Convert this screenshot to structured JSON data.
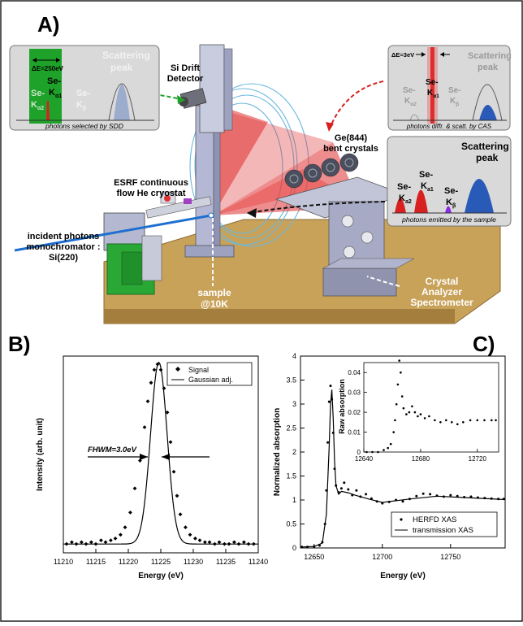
{
  "panels": {
    "a_letter": "A)",
    "b_letter": "B)",
    "c_letter": "C)"
  },
  "setup": {
    "inset_sdd": {
      "delta": "ΔE=250eV",
      "peak1_top": "Se-",
      "peak1_sub": "K",
      "peak1_sub2": "α2",
      "peak2_top": "Se-",
      "peak2_sub": "K",
      "peak2_sub2": "α1",
      "peak3_top": "Se-",
      "peak3_sub": "K",
      "peak3_sub2": "β",
      "scatter_1": "Scattering",
      "scatter_2": "peak",
      "caption": "photons selected by SDD"
    },
    "inset_cas": {
      "delta": "ΔE=3eV",
      "peak1_top": "Se-",
      "peak1_sub": "K",
      "peak1_sub2": "α2",
      "peak2_top": "Se-",
      "peak2_sub": "K",
      "peak2_sub2": "α1",
      "peak3_top": "Se-",
      "peak3_sub": "K",
      "peak3_sub2": "β",
      "scatter_1": "Scattering",
      "scatter_2": "peak",
      "caption": "photons diffr. & scatt. by CAS"
    },
    "inset_emit": {
      "peak1_top": "Se-",
      "peak1_sub": "K",
      "peak1_sub2": "a2",
      "peak2_top": "Se-",
      "peak2_sub": "K",
      "peak2_sub2": "a1",
      "peak3_top": "Se-",
      "peak3_sub": "K",
      "peak3_sub2": "β",
      "scatter_1": "Scattering",
      "scatter_2": "peak",
      "caption": "photons emitted by the sample"
    },
    "labels": {
      "si_drift_1": "Si Drift",
      "si_drift_2": "Detector",
      "ge_1": "Ge(844)",
      "ge_2": "bent crystals",
      "cryo_1": "ESRF continuous",
      "cryo_2": "flow He cryostat",
      "incident_1": "incident photons",
      "incident_2": "monochromator :",
      "incident_3": "Si(220)",
      "sample_1": "sample",
      "sample_2": "@10K",
      "cas_1": "Crystal",
      "cas_2": "Analyzer",
      "cas_3": "Spectrometer"
    },
    "colors": {
      "sdd_green": "#1fa22a",
      "kalpha_red": "#d92020",
      "kbeta_purple": "#8a2be2",
      "scatter_blue": "#2a5ab8",
      "beam_blue": "#1f6fd0",
      "table_tan": "#c9a25a"
    }
  },
  "chart_data": [
    {
      "type": "scatter",
      "panel": "B",
      "xlabel": "Energy (eV)",
      "ylabel": "Intensity (arb. unit)",
      "xlim": [
        11210,
        11240
      ],
      "x_ticks": [
        "11210",
        "11215",
        "11220",
        "11225",
        "11230",
        "11235",
        "11240"
      ],
      "legend": [
        "Signal",
        "Gaussian adj."
      ],
      "legend_position": "top-right",
      "annotation": "FHWM=3.0eV",
      "series": [
        {
          "name": "Signal",
          "x": [
            11210.5,
            11211.3,
            11212.0,
            11212.8,
            11213.5,
            11214.3,
            11215.0,
            11215.8,
            11216.5,
            11217.3,
            11218.0,
            11218.8,
            11219.5,
            11220.3,
            11221.0,
            11221.8,
            11222.5,
            11223.0,
            11223.5,
            11224.0,
            11224.5,
            11225.0,
            11225.5,
            11226.0,
            11226.5,
            11227.0,
            11227.5,
            11228.0,
            11228.8,
            11229.5,
            11230.3,
            11231.0,
            11231.8,
            11232.5,
            11233.3,
            11234.0,
            11234.8,
            11235.5,
            11236.3,
            11237.0,
            11237.8,
            11238.5,
            11239.3
          ],
          "y": [
            0.03,
            0.04,
            0.03,
            0.04,
            0.03,
            0.04,
            0.03,
            0.05,
            0.04,
            0.05,
            0.06,
            0.08,
            0.12,
            0.2,
            0.33,
            0.48,
            0.66,
            0.8,
            0.9,
            0.97,
            1.0,
            0.97,
            0.87,
            0.74,
            0.58,
            0.42,
            0.29,
            0.19,
            0.12,
            0.08,
            0.06,
            0.05,
            0.04,
            0.04,
            0.03,
            0.04,
            0.03,
            0.03,
            0.04,
            0.03,
            0.04,
            0.03,
            0.03
          ]
        },
        {
          "name": "Gaussian adj.",
          "center": 11224.7,
          "fwhm": 3.0,
          "amplitude": 0.98,
          "baseline": 0.03
        }
      ]
    },
    {
      "type": "line",
      "panel": "C",
      "xlabel": "Energy (eV)",
      "ylabel": "Normalized absorption",
      "xlim": [
        12640,
        12790
      ],
      "ylim": [
        0,
        4
      ],
      "x_ticks": [
        "12650",
        "12700",
        "12750"
      ],
      "y_ticks": [
        "0",
        "0.5",
        "1",
        "1.5",
        "2",
        "2.5",
        "3",
        "3.5",
        "4"
      ],
      "legend": [
        "HERFD XAS",
        "transmission XAS"
      ],
      "legend_position": "bottom-right",
      "series": [
        {
          "name": "HERFD XAS",
          "x": [
            12641,
            12645,
            12650,
            12654,
            12656,
            12658,
            12659,
            12660,
            12661,
            12662,
            12663,
            12664,
            12665,
            12666,
            12668,
            12670,
            12672,
            12675,
            12678,
            12681,
            12684,
            12688,
            12692,
            12696,
            12700,
            12705,
            12710,
            12715,
            12720,
            12725,
            12730,
            12735,
            12740,
            12745,
            12750,
            12755,
            12760,
            12765,
            12770,
            12775,
            12780,
            12785,
            12789
          ],
          "y": [
            0.02,
            0.02,
            0.03,
            0.05,
            0.12,
            0.5,
            1.2,
            2.2,
            3.05,
            3.38,
            3.1,
            2.4,
            1.65,
            1.3,
            1.16,
            1.24,
            1.36,
            1.22,
            1.1,
            1.2,
            1.07,
            1.12,
            1.03,
            0.97,
            0.93,
            0.96,
            1.0,
            0.97,
            1.02,
            1.08,
            1.13,
            1.12,
            1.09,
            1.07,
            1.1,
            1.08,
            1.06,
            1.07,
            1.05,
            1.04,
            1.03,
            1.02,
            1.02
          ]
        },
        {
          "name": "transmission XAS",
          "x": [
            12641,
            12650,
            12656,
            12659,
            12661,
            12662,
            12663,
            12664,
            12665,
            12666,
            12668,
            12670,
            12675,
            12680,
            12690,
            12700,
            12720,
            12740,
            12760,
            12789
          ],
          "y": [
            0.02,
            0.03,
            0.1,
            0.7,
            2.1,
            3.0,
            3.3,
            2.7,
            1.8,
            1.3,
            1.12,
            1.18,
            1.15,
            1.1,
            1.02,
            0.95,
            1.02,
            1.08,
            1.05,
            1.01
          ]
        }
      ],
      "inset": {
        "ylabel": "Raw absorption",
        "xlim": [
          12640,
          12735
        ],
        "ylim": [
          0,
          0.045
        ],
        "x_ticks": [
          "12640",
          "12680",
          "12720"
        ],
        "y_ticks": [
          "0",
          "0.01",
          "0.02",
          "0.03",
          "0.04"
        ],
        "x": [
          12642,
          12646,
          12650,
          12654,
          12657,
          12659,
          12661,
          12662,
          12663,
          12664,
          12665,
          12666,
          12667,
          12668,
          12670,
          12672,
          12674,
          12676,
          12678,
          12680,
          12683,
          12686,
          12690,
          12694,
          12698,
          12702,
          12706,
          12710,
          12715,
          12720,
          12725,
          12730,
          12733
        ],
        "y": [
          0.0,
          0.0,
          0.0,
          0.001,
          0.002,
          0.004,
          0.01,
          0.016,
          0.024,
          0.034,
          0.046,
          0.04,
          0.028,
          0.022,
          0.019,
          0.02,
          0.023,
          0.02,
          0.018,
          0.019,
          0.017,
          0.018,
          0.016,
          0.015,
          0.016,
          0.015,
          0.014,
          0.015,
          0.016,
          0.016,
          0.016,
          0.016,
          0.016
        ]
      }
    }
  ]
}
